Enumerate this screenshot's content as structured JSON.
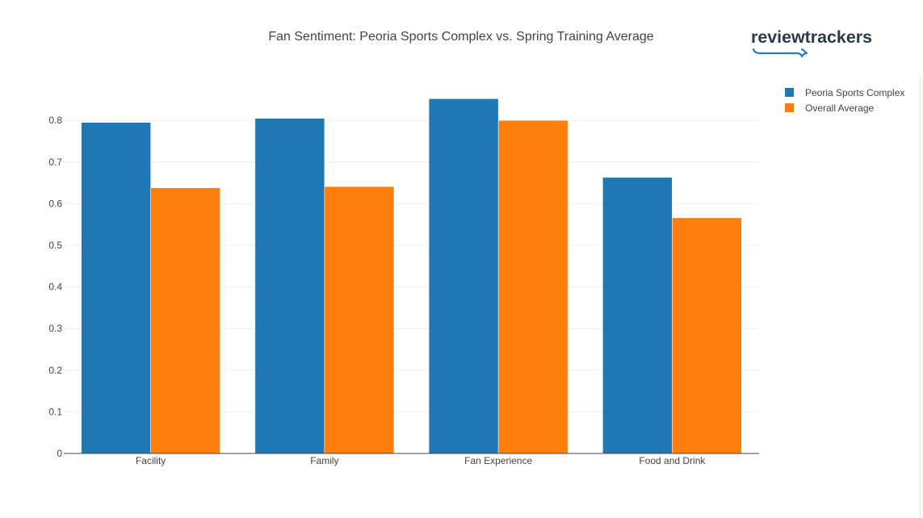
{
  "brand": {
    "name": "reviewtrackers",
    "text_color": "#2b3a4a",
    "accent_color": "#2a7ab8"
  },
  "chart_data": {
    "type": "bar",
    "title": "Fan Sentiment: Peoria Sports Complex vs. Spring Training Average",
    "xlabel": "",
    "ylabel": "",
    "categories": [
      "Facility",
      "Family",
      "Fan Experience",
      "Food and Drink"
    ],
    "series": [
      {
        "name": "Peoria Sports Complex",
        "color": "#1f77b4",
        "values": [
          0.795,
          0.805,
          0.852,
          0.663
        ]
      },
      {
        "name": "Overall Average",
        "color": "#ff7f0e",
        "values": [
          0.638,
          0.641,
          0.8,
          0.566
        ]
      }
    ],
    "ylim": [
      0,
      0.85
    ],
    "yticks": [
      "0",
      "0.1",
      "0.2",
      "0.3",
      "0.4",
      "0.5",
      "0.6",
      "0.7",
      "0.8"
    ],
    "grid": true,
    "legend": "top-right"
  }
}
